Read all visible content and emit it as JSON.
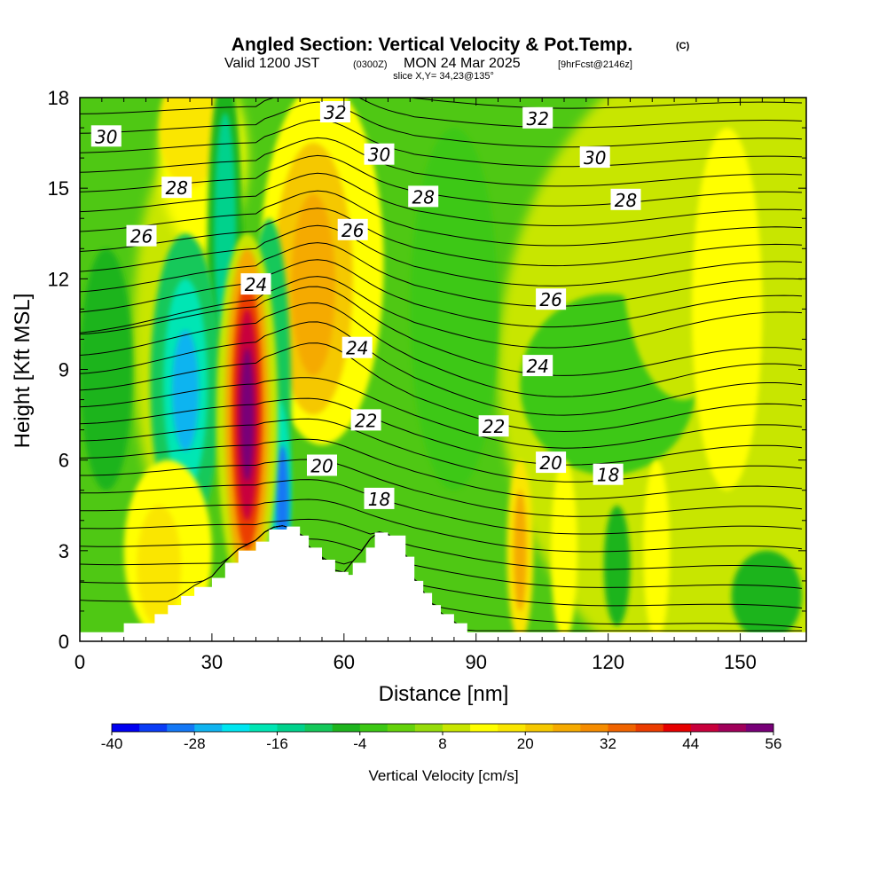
{
  "header": {
    "title_main": "Angled Section: Vertical Velocity & Pot.Temp.",
    "title_tag": "(C)",
    "valid_prefix": "Valid 1200 JST",
    "valid_zulu": "(0300Z)",
    "valid_date": "MON 24 Mar 2025",
    "valid_fcst": "[9hrFcst@2146z]",
    "slice": "slice X,Y= 34,23@135°"
  },
  "chart_data": {
    "type": "heatmap",
    "title": "Angled Section: Vertical Velocity & Pot.Temp.",
    "xlabel": "Distance [nm]",
    "ylabel": "Height [Kft MSL]",
    "xlim": [
      0,
      165
    ],
    "ylim": [
      0,
      18
    ],
    "x_ticks": [
      "0",
      "30",
      "60",
      "90",
      "120",
      "150"
    ],
    "y_ticks": [
      "0",
      "3",
      "6",
      "9",
      "12",
      "15",
      "18"
    ],
    "x_tick_values": [
      0,
      30,
      60,
      90,
      120,
      150
    ],
    "y_tick_values": [
      0,
      3,
      6,
      9,
      12,
      15,
      18
    ],
    "colorbar": {
      "title": "Vertical Velocity [cm/s]",
      "labels": [
        "-40",
        "-28",
        "-16",
        "-4",
        "8",
        "20",
        "32",
        "44",
        "56"
      ],
      "label_values": [
        -40,
        -28,
        -16,
        -4,
        8,
        20,
        32,
        44,
        56
      ],
      "levels": [
        -40,
        -36,
        -32,
        -28,
        -24,
        -20,
        -16,
        -12,
        -8,
        -4,
        0,
        4,
        8,
        12,
        16,
        20,
        24,
        28,
        32,
        36,
        40,
        44,
        48,
        52,
        56
      ],
      "colors": [
        "#0000f0",
        "#0a3cf5",
        "#1478f5",
        "#10b4f0",
        "#00e6f0",
        "#00e6b4",
        "#00d28c",
        "#14c85a",
        "#1eb41e",
        "#3cc814",
        "#64d20a",
        "#96dc0a",
        "#c8e600",
        "#ffff00",
        "#fae600",
        "#f5c800",
        "#f5aa00",
        "#f58c00",
        "#f06400",
        "#eb3c00",
        "#e60000",
        "#c8003c",
        "#a0005a",
        "#780078"
      ]
    },
    "terrain_profile": {
      "x": [
        0,
        10,
        10,
        17,
        20,
        23,
        26,
        30,
        33,
        36,
        40,
        43,
        47,
        50,
        52,
        55,
        58,
        61,
        62,
        65,
        67,
        70,
        74,
        76,
        78,
        80,
        82,
        85,
        88,
        91,
        165
      ],
      "height": [
        0.3,
        0.6,
        0.6,
        0.9,
        1.2,
        1.5,
        1.8,
        2.1,
        2.6,
        3.0,
        3.3,
        3.7,
        3.8,
        3.5,
        3.1,
        2.7,
        2.3,
        2.2,
        2.6,
        3.1,
        3.6,
        3.5,
        2.8,
        2.0,
        1.6,
        1.2,
        0.9,
        0.6,
        0.3,
        0.3,
        0.3
      ]
    },
    "velocity_features": [
      {
        "x": 38,
        "height": 7.5,
        "peak_cm_s": 56,
        "label": "updraft core"
      },
      {
        "x": 24,
        "height": 8.5,
        "peak_cm_s": -28,
        "label": "downdraft"
      },
      {
        "x": 45,
        "height": 4.5,
        "peak_cm_s": -32,
        "label": "lee downdraft"
      },
      {
        "x": 53,
        "height": 12.0,
        "peak_cm_s": 24,
        "label": "upper updraft"
      },
      {
        "x": 25,
        "height": 17.0,
        "peak_cm_s": 16,
        "label": "upper updraft"
      },
      {
        "x": 33,
        "height": 13.5,
        "peak_cm_s": -16,
        "label": "upper downdraft"
      },
      {
        "x": 100,
        "height": 3.0,
        "peak_cm_s": 20,
        "label": "gravity wave"
      }
    ],
    "pot_temp_contours": {
      "units": "C",
      "labels": [
        {
          "text": "32",
          "x": 58,
          "height": 17.5
        },
        {
          "text": "32",
          "x": 104,
          "height": 17.3
        },
        {
          "text": "30",
          "x": 6,
          "height": 16.7
        },
        {
          "text": "30",
          "x": 68,
          "height": 16.1
        },
        {
          "text": "30",
          "x": 117,
          "height": 16.0
        },
        {
          "text": "28",
          "x": 22,
          "height": 15.0
        },
        {
          "text": "28",
          "x": 78,
          "height": 14.7
        },
        {
          "text": "28",
          "x": 124,
          "height": 14.6
        },
        {
          "text": "26",
          "x": 14,
          "height": 13.4
        },
        {
          "text": "26",
          "x": 62,
          "height": 13.6
        },
        {
          "text": "26",
          "x": 107,
          "height": 11.3
        },
        {
          "text": "24",
          "x": 40,
          "height": 11.8
        },
        {
          "text": "24",
          "x": 63,
          "height": 9.7
        },
        {
          "text": "24",
          "x": 104,
          "height": 9.1
        },
        {
          "text": "22",
          "x": 65,
          "height": 7.3
        },
        {
          "text": "22",
          "x": 94,
          "height": 7.1
        },
        {
          "text": "20",
          "x": 55,
          "height": 5.8
        },
        {
          "text": "20",
          "x": 107,
          "height": 5.9
        },
        {
          "text": "18",
          "x": 68,
          "height": 4.7
        },
        {
          "text": "18",
          "x": 120,
          "height": 5.5
        }
      ]
    },
    "grid": false
  }
}
